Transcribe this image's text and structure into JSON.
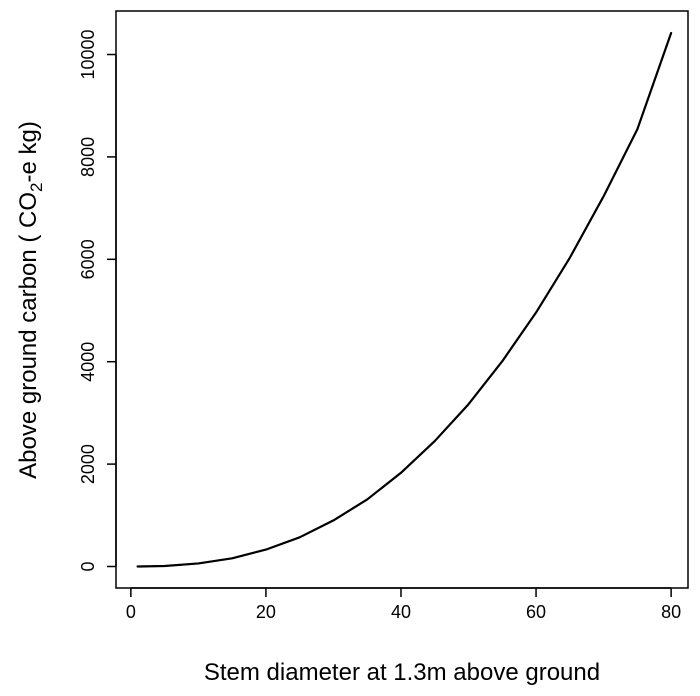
{
  "chart_data": {
    "type": "line",
    "title": "",
    "xlabel": "Stem diameter at 1.3m above ground",
    "ylabel": {
      "prefix": "Above ground carbon ( CO",
      "subscript": "2",
      "suffix": "-e kg)"
    },
    "xlim": [
      -2.2,
      82.5
    ],
    "ylim": [
      -420,
      10850
    ],
    "xticks": [
      0,
      20,
      40,
      60,
      80
    ],
    "yticks": [
      0,
      2000,
      4000,
      6000,
      8000,
      10000
    ],
    "grid": false,
    "legend": "none",
    "line_color": "#000000",
    "series": [
      {
        "x": [
          1,
          5,
          10,
          15,
          20,
          25,
          30,
          35,
          40,
          45,
          50,
          55,
          60,
          65,
          70,
          75,
          80
        ],
        "y": [
          0,
          10,
          60,
          160,
          330,
          570,
          900,
          1310,
          1830,
          2450,
          3170,
          4010,
          4960,
          6030,
          7230,
          8540,
          10420
        ]
      }
    ]
  }
}
